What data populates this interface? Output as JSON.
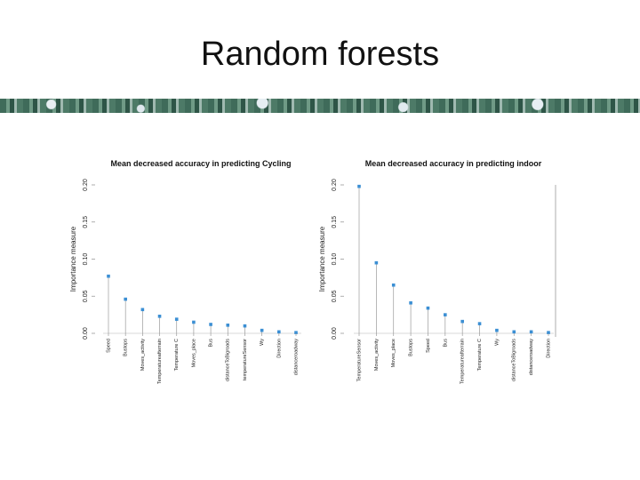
{
  "slide": {
    "title": "Random forests"
  },
  "colors": {
    "point": "#3b8fd4",
    "stem": "#9a9a9a",
    "axis": "#9a9a9a"
  },
  "chart_data": [
    {
      "type": "scatter",
      "title": "Mean decreased accuracy in predicting Cycling",
      "ylabel": "Importance measure",
      "xlabel": "",
      "ylim": [
        0,
        0.2
      ],
      "yticks": [
        "0.00",
        "0.05",
        "0.10",
        "0.15",
        "0.20"
      ],
      "categories": [
        "Speed",
        "Bustops",
        "Moves_activity",
        "Temperatureafterrain",
        "Temperature C",
        "Moves_place",
        "Bus",
        "distanceToBigroads",
        "temperatureSensor",
        "Wy",
        "Direction",
        "distanceroadway"
      ],
      "values": [
        0.077,
        0.046,
        0.032,
        0.023,
        0.019,
        0.015,
        0.012,
        0.011,
        0.01,
        0.004,
        0.002,
        0.001
      ],
      "grid": false
    },
    {
      "type": "scatter",
      "title": "Mean decreased accuracy in predicting indoor",
      "ylabel": "Importance measure",
      "xlabel": "",
      "ylim": [
        0,
        0.2
      ],
      "yticks": [
        "0.00",
        "0.05",
        "0.10",
        "0.15",
        "0.20"
      ],
      "categories": [
        "TemperatureSensor",
        "Moves_activity",
        "Moves_place",
        "Bustops",
        "Speed",
        "Bus",
        "Temperatureafterrain",
        "Temperature C",
        "Wy",
        "distanceToBigroads",
        "distanceroadway",
        "Direction"
      ],
      "values": [
        0.198,
        0.095,
        0.065,
        0.041,
        0.034,
        0.025,
        0.016,
        0.013,
        0.004,
        0.002,
        0.002,
        0.001
      ],
      "grid": false
    }
  ]
}
